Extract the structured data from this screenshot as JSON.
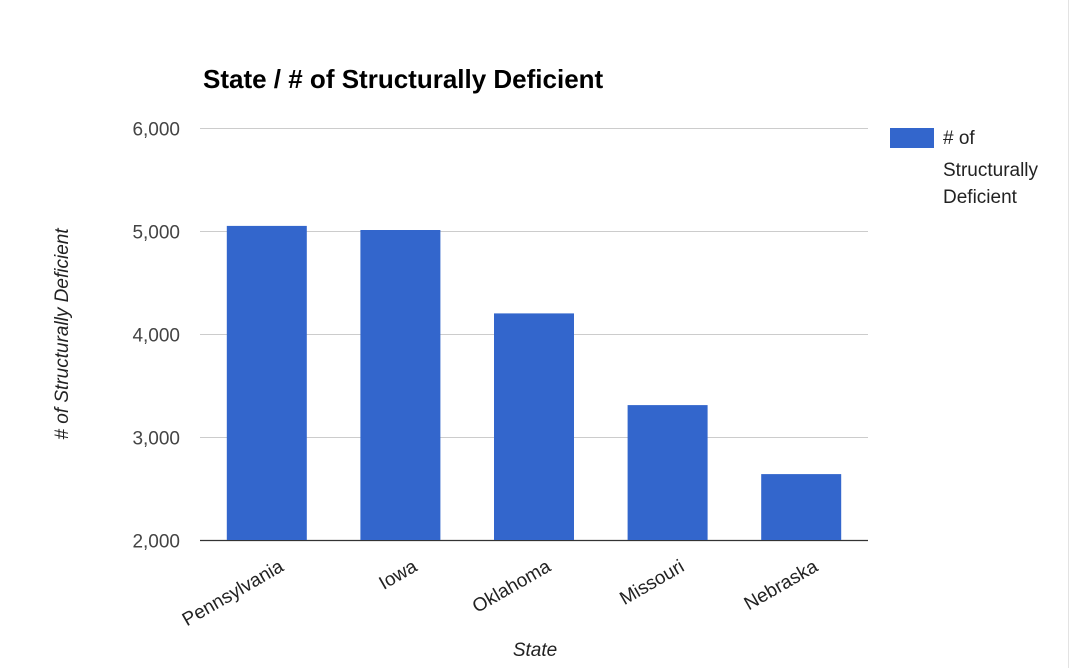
{
  "chart_data": {
    "type": "bar",
    "title": "State / # of Structurally Deficient",
    "xlabel": "State",
    "ylabel": "# of Structurally Deficient",
    "categories": [
      "Pennsylvania",
      "Iowa",
      "Oklahoma",
      "Missouri",
      "Nebraska"
    ],
    "series": [
      {
        "name": "# of Structurally Deficient",
        "values": [
          5050,
          5010,
          4200,
          3310,
          2640
        ]
      }
    ],
    "legend_lines": [
      "# of",
      "Structurally",
      "Deficient"
    ],
    "ylim": [
      2000,
      6000
    ],
    "yticks": [
      2000,
      3000,
      4000,
      5000,
      6000
    ],
    "ytick_labels": [
      "2,000",
      "3,000",
      "4,000",
      "5,000",
      "6,000"
    ],
    "grid": true,
    "legend_position": "right",
    "bar_color": "#3366cc",
    "grid_color": "#cccccc",
    "axis_color": "#333333"
  }
}
